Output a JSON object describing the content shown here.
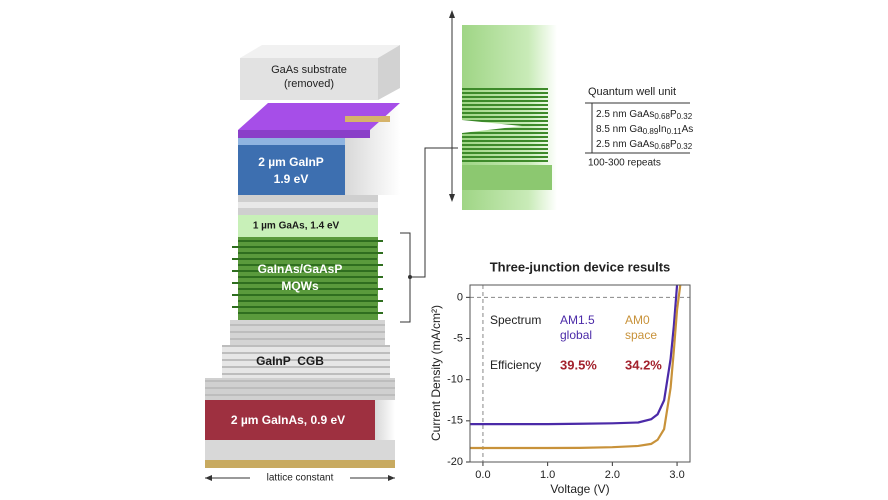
{
  "diagram": {
    "substrate": [
      "GaAs substrate",
      "(removed)"
    ],
    "top_cell": [
      "2 µm GaInP",
      "1.9 eV"
    ],
    "middle_cell": "1 µm GaAs, 1.4 eV",
    "mqw": [
      "GaInAs/GaAsP",
      "MQWs"
    ],
    "cgb": "GaInP  CGB",
    "bottom_cell": "2 µm GaInAs, 0.9 eV",
    "lattice": "lattice constant",
    "qw_title": "Quantum well unit",
    "qw_layers": [
      [
        "2.5 nm GaAs",
        "0.68",
        "P",
        "0.32"
      ],
      [
        "8.5 nm Ga",
        "0.89",
        "In",
        "0.11",
        "As"
      ],
      [
        "2.5 nm GaAs",
        "0.68",
        "P",
        "0.32"
      ]
    ],
    "repeats": "100-300 repeats"
  },
  "chart_data": {
    "type": "line",
    "title": "Three-junction device results",
    "x_label": "Voltage (V)",
    "y_label": "Current Density (mA/cm²)",
    "x": [
      -0.2,
      0,
      0.5,
      1,
      1.5,
      2,
      2.4,
      2.6,
      2.7,
      2.8,
      2.9,
      2.95,
      3.0,
      3.05
    ],
    "series": [
      {
        "name": "AM1.5",
        "name_line2": "global",
        "color": "#4b2aa8",
        "efficiency": "39.5%",
        "values": [
          -15.4,
          -15.4,
          -15.4,
          -15.4,
          -15.35,
          -15.3,
          -15.2,
          -14.8,
          -14.2,
          -12.5,
          -7.5,
          -3.5,
          1.5,
          null
        ]
      },
      {
        "name": "AM0",
        "name_line2": "space",
        "color": "#c8923a",
        "efficiency": "34.2%",
        "values": [
          -18.3,
          -18.3,
          -18.3,
          -18.3,
          -18.28,
          -18.2,
          -18.05,
          -17.8,
          -17.3,
          -16.0,
          -11.0,
          -6.5,
          -1.5,
          1.5
        ]
      }
    ],
    "row_labels": [
      "Spectrum",
      "Efficiency"
    ],
    "xlim": [
      -0.2,
      3.2
    ],
    "ylim": [
      -20,
      1.5
    ],
    "xticks": [
      {
        "value": 0,
        "label": "0.0"
      },
      {
        "value": 1,
        "label": "1.0"
      },
      {
        "value": 2,
        "label": "2.0"
      },
      {
        "value": 3,
        "label": "3.0"
      }
    ],
    "yticks": [
      0,
      -5,
      -10,
      -15,
      -20
    ]
  }
}
